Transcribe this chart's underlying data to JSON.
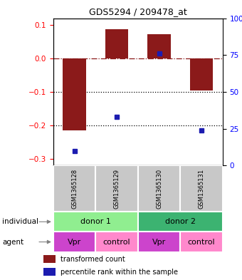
{
  "title": "GDS5294 / 209478_at",
  "samples": [
    "GSM1365128",
    "GSM1365129",
    "GSM1365130",
    "GSM1365131"
  ],
  "bar_values": [
    -0.215,
    0.088,
    0.072,
    -0.095
  ],
  "percentile_values": [
    10,
    33,
    76,
    24
  ],
  "bar_color": "#8B1A1A",
  "dot_color": "#1C1CB0",
  "ylim_left": [
    -0.32,
    0.12
  ],
  "ylim_right": [
    0,
    100
  ],
  "yticks_left": [
    0.1,
    0.0,
    -0.1,
    -0.2,
    -0.3
  ],
  "yticks_right": [
    100,
    75,
    50,
    25,
    0
  ],
  "hline_y": 0.0,
  "dotted_lines": [
    -0.1,
    -0.2
  ],
  "individual_labels": [
    "donor 1",
    "donor 2"
  ],
  "agent_labels": [
    "Vpr",
    "control",
    "Vpr",
    "control"
  ],
  "individual_colors": [
    "#90EE90",
    "#3CB371"
  ],
  "agent_colors_map": {
    "Vpr": "#CC44CC",
    "control": "#FF88CC"
  },
  "gsm_bg_color": "#C8C8C8",
  "legend_bar_label": "transformed count",
  "legend_dot_label": "percentile rank within the sample",
  "bar_width": 0.55,
  "dot_size": 5
}
